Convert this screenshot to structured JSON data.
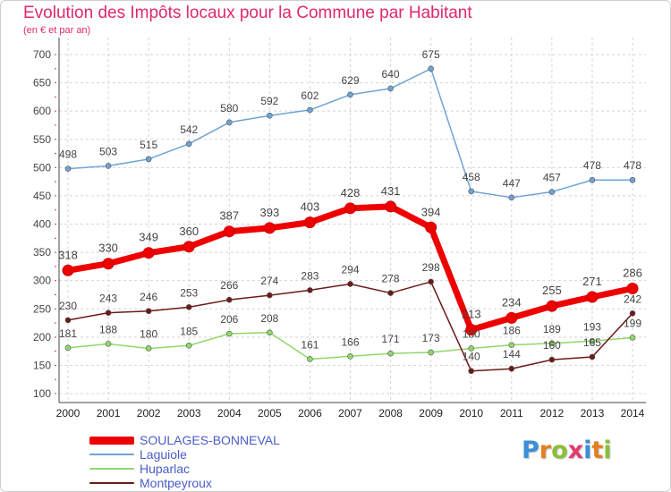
{
  "header": {
    "title": "Evolution des Impôts locaux pour la Commune par Habitant",
    "subtitle": "(en € et par an)"
  },
  "logo": {
    "letters": [
      "P",
      "r",
      "o",
      "x",
      "i",
      "t",
      "i"
    ],
    "colors": [
      "#3a8fd6",
      "#e57f21",
      "#8bbf3a",
      "#e03c6c",
      "#3a8fd6",
      "#e57f21",
      "#8bbf3a"
    ]
  },
  "chart_data": {
    "type": "line",
    "title": "Evolution des Impôts locaux pour la Commune par Habitant",
    "subtitle": "(en € et par an)",
    "x": [
      "2000",
      "2001",
      "2002",
      "2003",
      "2004",
      "2005",
      "2006",
      "2007",
      "2008",
      "2009",
      "2010",
      "2011",
      "2012",
      "2013",
      "2014"
    ],
    "ylim": [
      100,
      700
    ],
    "yticks": [
      100,
      150,
      200,
      250,
      300,
      350,
      400,
      450,
      500,
      550,
      600,
      650,
      700
    ],
    "grid": "horizontal-dashed",
    "legend_position": "bottom-left",
    "series": [
      {
        "name": "SOULAGES-BONNEVAL",
        "color": "#ee0000",
        "values": [
          318,
          330,
          349,
          360,
          387,
          393,
          403,
          428,
          431,
          394,
          213,
          234,
          255,
          271,
          286
        ],
        "labels": [
          "318",
          "330",
          "349",
          "360",
          "387",
          "393",
          "403",
          "428",
          "431",
          "394",
          "213",
          "234",
          "255",
          "271",
          "286"
        ]
      },
      {
        "name": "Laguiole",
        "color": "#6fa3d4",
        "values": [
          498,
          503,
          515,
          542,
          580,
          592,
          602,
          629,
          640,
          675,
          458,
          447,
          457,
          478,
          478
        ],
        "labels": [
          "498",
          "503",
          "515",
          "542",
          "580",
          "592",
          "602",
          "629",
          "640",
          "675",
          "458",
          "447",
          "457",
          "478",
          "478"
        ]
      },
      {
        "name": "Huparlac",
        "color": "#8fd86a",
        "values": [
          181,
          188,
          180,
          185,
          206,
          208,
          161,
          166,
          171,
          173,
          180,
          186,
          189,
          193,
          199
        ],
        "labels": [
          "181",
          "188",
          "180",
          "185",
          "206",
          "208",
          "161",
          "166",
          "171",
          "173",
          "180",
          "186",
          "189",
          "193",
          "199"
        ]
      },
      {
        "name": "Montpeyroux",
        "color": "#6b1a1a",
        "values": [
          230,
          243,
          246,
          253,
          266,
          274,
          283,
          294,
          278,
          298,
          140,
          144,
          160,
          165,
          242
        ],
        "labels": [
          "230",
          "243",
          "246",
          "253",
          "266",
          "274",
          "283",
          "294",
          "278",
          "298",
          "140",
          "144",
          "160",
          "165",
          "242"
        ]
      }
    ]
  }
}
